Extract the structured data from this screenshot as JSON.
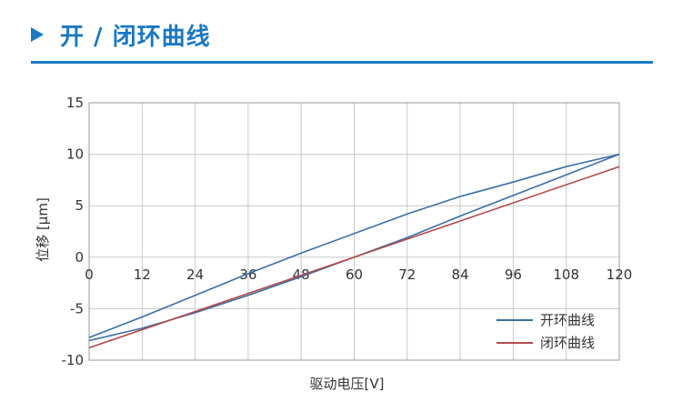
{
  "header": {
    "title": "开 / 闭环曲线",
    "icon": "play-triangle-icon",
    "accent_color": "#1a78c2"
  },
  "chart_data": {
    "type": "line",
    "title": "",
    "xlabel": "驱动电压[V]",
    "ylabel": "位移 [μm]",
    "xlim": [
      0,
      120
    ],
    "ylim": [
      -10,
      15
    ],
    "xticks": [
      0,
      12,
      24,
      36,
      48,
      60,
      72,
      84,
      96,
      108,
      120
    ],
    "yticks": [
      15,
      10,
      5,
      0,
      -5,
      -10
    ],
    "grid": true,
    "legend_position": "bottom-right",
    "series": [
      {
        "name": "开环曲线",
        "color": "#3a6fa8",
        "segments": [
          {
            "x": [
              0,
              12,
              24,
              36,
              48,
              60,
              72,
              84,
              96,
              108,
              120
            ],
            "y": [
              -7.8,
              -5.8,
              -3.7,
              -1.6,
              0.4,
              2.3,
              4.2,
              5.9,
              7.3,
              8.8,
              10.0
            ]
          },
          {
            "x": [
              120,
              108,
              96,
              84,
              72,
              60,
              48,
              36,
              24,
              12,
              0
            ],
            "y": [
              10.0,
              8.0,
              6.0,
              4.0,
              1.9,
              0.0,
              -1.9,
              -3.7,
              -5.4,
              -6.9,
              -8.1
            ]
          }
        ]
      },
      {
        "name": "闭环曲线",
        "color": "#b24a4a",
        "segments": [
          {
            "x": [
              0,
              120
            ],
            "y": [
              -8.8,
              8.8
            ]
          }
        ]
      }
    ]
  }
}
